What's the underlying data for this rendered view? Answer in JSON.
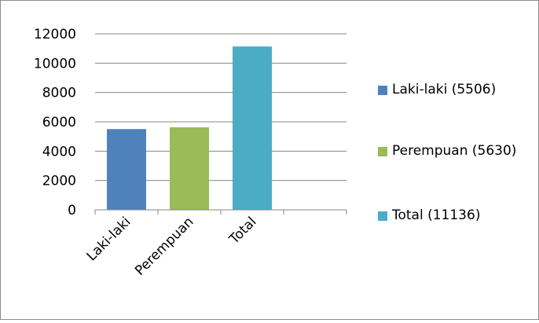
{
  "chart_data": {
    "type": "bar",
    "categories": [
      "Laki-laki",
      "Perempuan",
      "Total",
      ""
    ],
    "values": [
      5506,
      5630,
      11136,
      null
    ],
    "colors": [
      "#4f81bd",
      "#9bbb59",
      "#4bacc6"
    ],
    "ylim": [
      0,
      12000
    ],
    "yticks": [
      0,
      2000,
      4000,
      6000,
      8000,
      10000,
      12000
    ],
    "grid": true,
    "legend_position": "right",
    "legend": [
      {
        "label": "Laki-laki (5506)",
        "color": "#4f81bd"
      },
      {
        "label": "Perempuan (5630)",
        "color": "#9bbb59"
      },
      {
        "label": "Total (11136)",
        "color": "#4bacc6"
      }
    ]
  }
}
